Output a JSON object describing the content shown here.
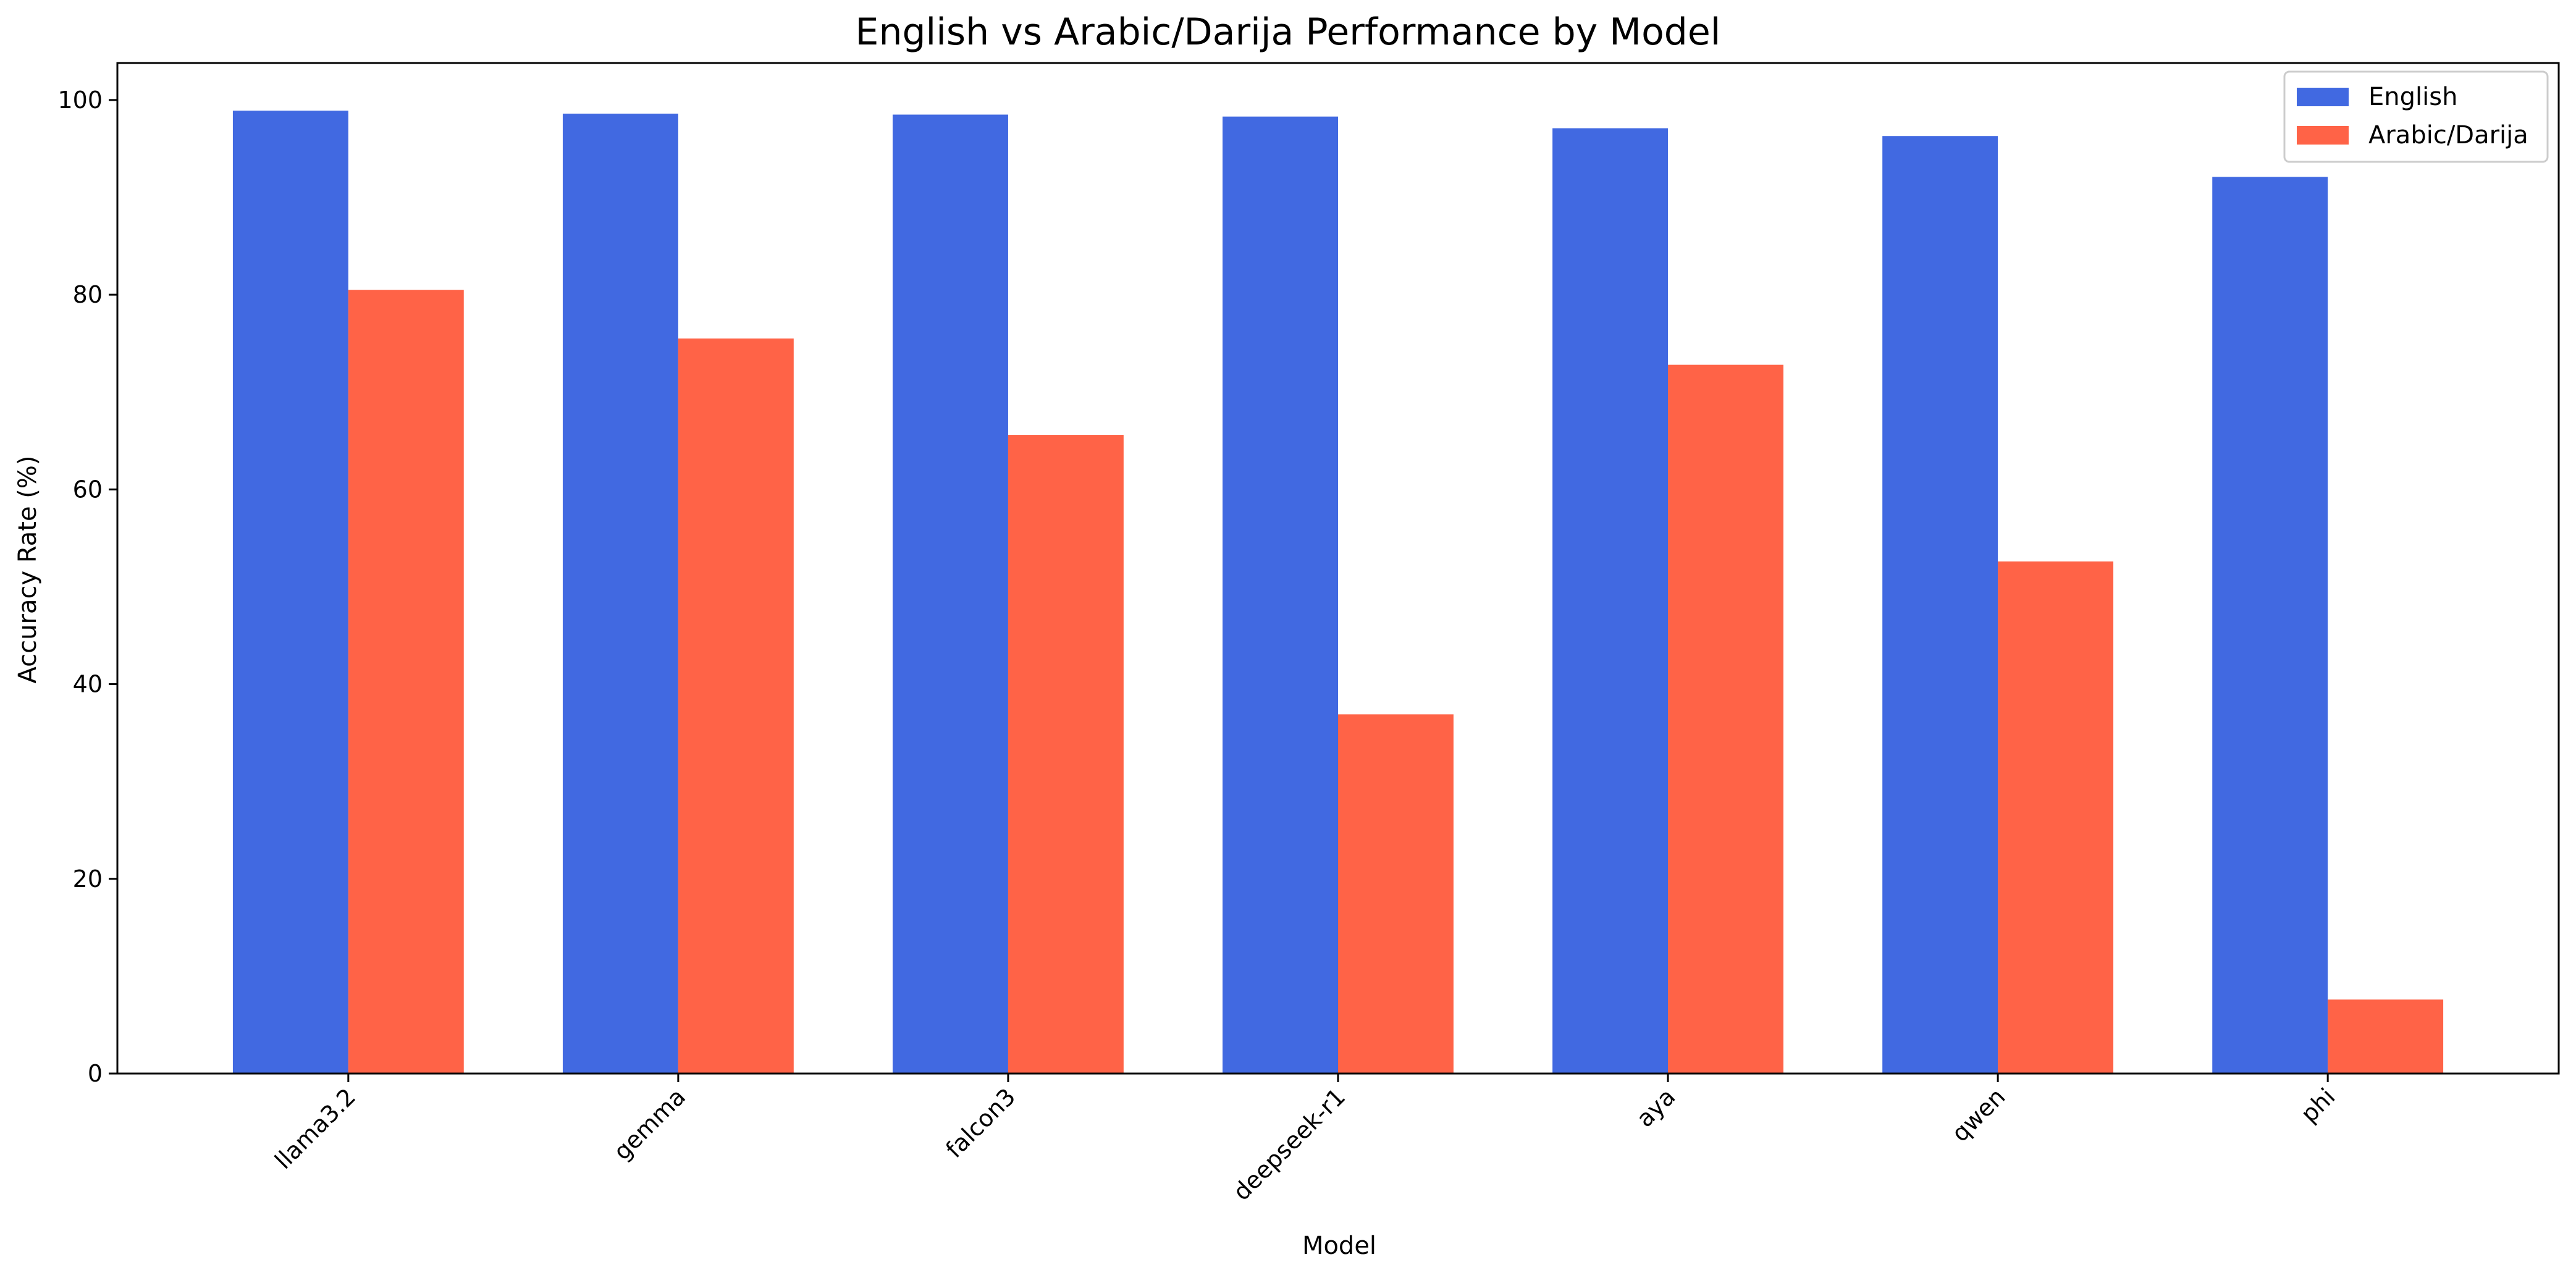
{
  "chart_data": {
    "type": "bar",
    "title": "English vs Arabic/Darija Performance by Model",
    "xlabel": "Model",
    "ylabel": "Accuracy Rate (%)",
    "categories": [
      "llama3.2",
      "gemma",
      "falcon3",
      "deepseek-r1",
      "aya",
      "qwen",
      "phi"
    ],
    "series": [
      {
        "name": "English",
        "color": "#4169E1",
        "values": [
          98.9,
          98.6,
          98.5,
          98.3,
          97.1,
          96.3,
          92.1
        ]
      },
      {
        "name": "Arabic/Darija",
        "color": "#FF6347",
        "values": [
          80.5,
          75.5,
          65.6,
          36.9,
          72.8,
          52.6,
          7.6
        ]
      }
    ],
    "ylim": [
      0,
      103.8
    ],
    "yticks": [
      0,
      20,
      40,
      60,
      80,
      100
    ],
    "grid": false,
    "legend": "top-right"
  }
}
